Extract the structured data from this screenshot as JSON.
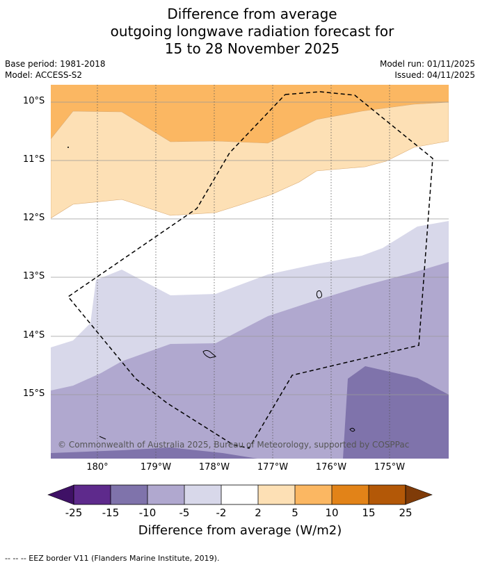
{
  "title": {
    "line1": "Difference from average",
    "line2": "outgoing longwave radiation forecast for",
    "line3": "15 to 28 November 2025"
  },
  "meta": {
    "base_period": "Base period: 1981-2018",
    "model": "Model: ACCESS-S2",
    "model_run": "Model run: 01/11/2025",
    "issued": "Issued: 04/11/2025"
  },
  "map": {
    "lat_labels": [
      "10°S",
      "11°S",
      "12°S",
      "13°S",
      "14°S",
      "15°S"
    ],
    "lon_labels": [
      "180°",
      "179°W",
      "178°W",
      "177°W",
      "176°W",
      "175°W"
    ],
    "copyright": "© Commonwealth of Australia 2025, Bureau of Meteorology, supported by COSPPac",
    "eez_label": "EEZ border V11"
  },
  "colorbar": {
    "ticks": [
      "-25",
      "-15",
      "-10",
      "-5",
      "-2",
      "2",
      "5",
      "10",
      "15",
      "25"
    ],
    "colors": [
      "#3f1166",
      "#5e2a8c",
      "#7f73ab",
      "#b0a8cf",
      "#d8d8ea",
      "#ffffff",
      "#fde0b5",
      "#fbb762",
      "#e28318",
      "#b35807",
      "#7f3b08"
    ],
    "title": "Difference from average (W/m2)"
  },
  "footnote": "-- -- -- EEZ border V11 (Flanders Marine Institute, 2019)."
}
